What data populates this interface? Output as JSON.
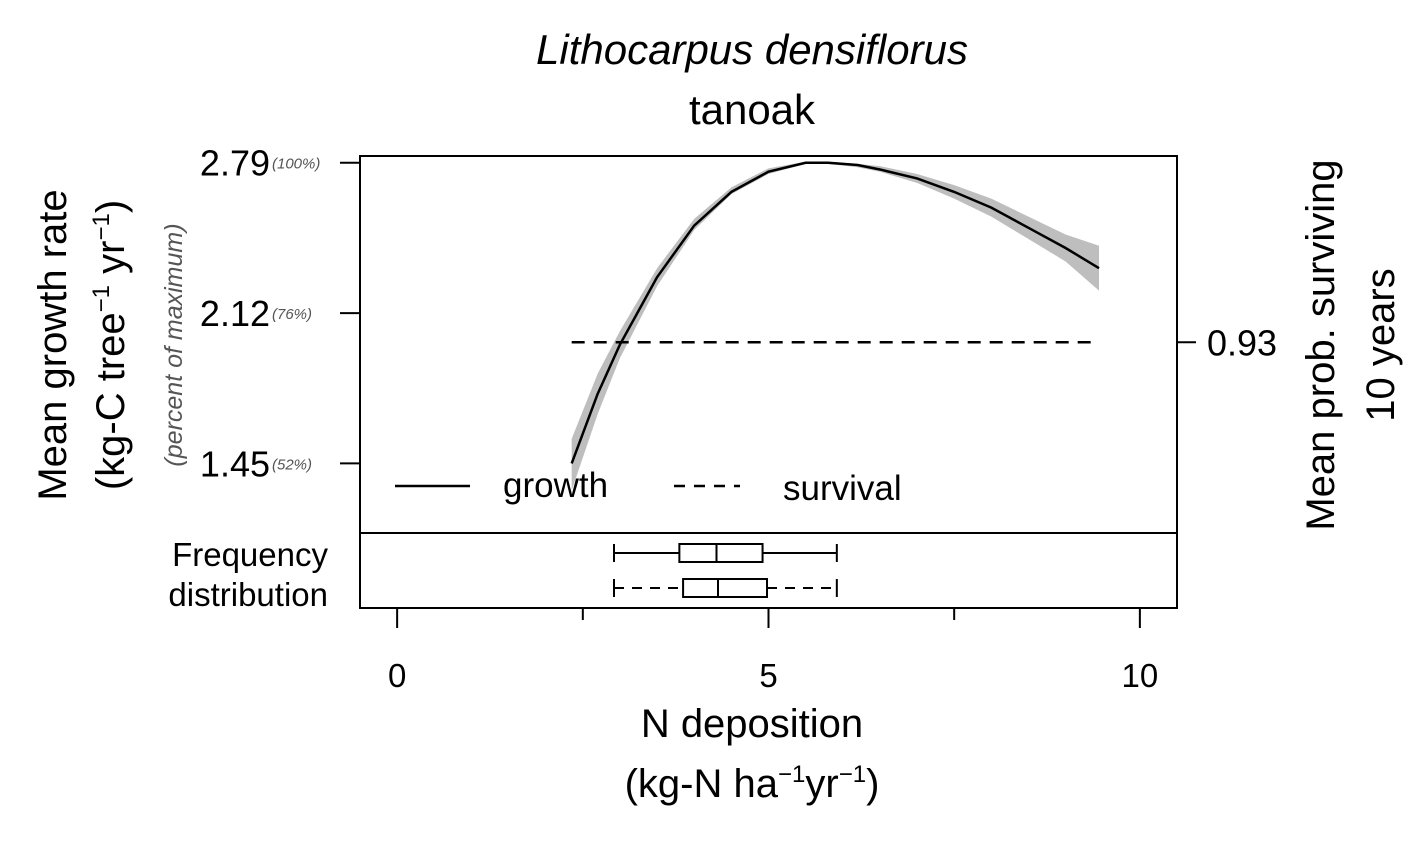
{
  "chart_data": {
    "type": "line",
    "title": "Lithocarpus densiflorus",
    "subtitle": "tanoak",
    "xlabel_line1": "N deposition",
    "xlabel_line2_parts": [
      "(kg-N ha",
      "−1",
      "yr",
      "−1",
      ")"
    ],
    "ylabel_line1": "Mean growth rate",
    "ylabel_line2_parts": [
      "(kg-C tree",
      "−1",
      " yr",
      "−1",
      ")"
    ],
    "ylabel_secondary": "(percent of maximum)",
    "y2label_line1": "Mean prob. surviving",
    "y2label_line2": "10 years",
    "xlim": [
      -0.5,
      10.5
    ],
    "ylim": [
      1.14,
      2.82
    ],
    "x_ticks": [
      0,
      2.5,
      5,
      7.5,
      10
    ],
    "x_tick_labels": [
      "0",
      "",
      "5",
      "",
      "10"
    ],
    "y_ticks": [
      {
        "value": 2.79,
        "label": "2.79",
        "pct": "(100%)"
      },
      {
        "value": 2.12,
        "label": "2.12",
        "pct": "(76%)"
      },
      {
        "value": 1.45,
        "label": "1.45",
        "pct": "(52%)"
      }
    ],
    "y2_ticks": [
      {
        "value": 1.99,
        "label": "0.93"
      }
    ],
    "series": [
      {
        "name": "growth",
        "style": "solid",
        "color": "#000000",
        "x": [
          2.35,
          2.7,
          3.0,
          3.5,
          4.0,
          4.5,
          5.0,
          5.5,
          5.8,
          6.2,
          6.5,
          7.0,
          7.5,
          8.0,
          8.5,
          9.0,
          9.45
        ],
        "y": [
          1.45,
          1.76,
          1.98,
          2.28,
          2.51,
          2.66,
          2.75,
          2.79,
          2.79,
          2.78,
          2.76,
          2.72,
          2.66,
          2.59,
          2.5,
          2.41,
          2.32
        ],
        "ci_lower": [
          1.33,
          1.67,
          1.92,
          2.24,
          2.49,
          2.65,
          2.74,
          2.785,
          2.785,
          2.77,
          2.75,
          2.7,
          2.63,
          2.55,
          2.45,
          2.35,
          2.22
        ],
        "ci_upper": [
          1.56,
          1.85,
          2.04,
          2.32,
          2.54,
          2.68,
          2.765,
          2.795,
          2.795,
          2.785,
          2.775,
          2.74,
          2.69,
          2.63,
          2.55,
          2.47,
          2.42
        ]
      },
      {
        "name": "survival",
        "style": "dashed",
        "color": "#000000",
        "x": [
          2.35,
          9.45
        ],
        "y": [
          1.99,
          1.99
        ]
      }
    ],
    "ci_color": "#bebebe",
    "legend": {
      "placement": "bottom-left",
      "entries": [
        "growth",
        "survival"
      ]
    },
    "frequency_label_line1": "Frequency",
    "frequency_label_line2": "distribution",
    "boxplots": [
      {
        "series": "growth",
        "whisker_style": "solid",
        "min": 2.92,
        "q1": 3.8,
        "median": 4.3,
        "q3": 4.92,
        "max": 5.92
      },
      {
        "series": "survival",
        "whisker_style": "dashed",
        "min": 2.92,
        "q1": 3.85,
        "median": 4.32,
        "q3": 4.98,
        "max": 5.92
      }
    ]
  }
}
